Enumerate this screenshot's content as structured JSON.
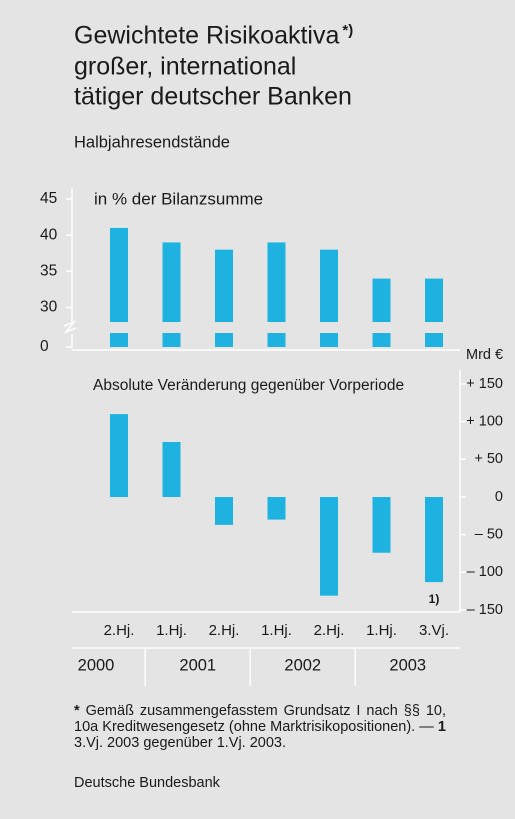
{
  "chart_data": {
    "type": "bar",
    "title": [
      "Gewichtete Risikoaktiva",
      "großer, international",
      "tätiger deutscher Banken"
    ],
    "title_mark": "*)",
    "subtitle": "Halbjahresendstände",
    "categories": [
      "2.Hj.",
      "1.Hj.",
      "2.Hj.",
      "1.Hj.",
      "2.Hj.",
      "1.Hj.",
      "3.Vj."
    ],
    "groups": [
      {
        "label": "2000",
        "span": 1
      },
      {
        "label": "2001",
        "span": 2
      },
      {
        "label": "2002",
        "span": 2
      },
      {
        "label": "2003",
        "span": 2
      }
    ],
    "series": [
      {
        "name": "in % der Bilanzsumme",
        "color": "#1eb2e0",
        "values": [
          41,
          39,
          38,
          39,
          38,
          34,
          34
        ]
      },
      {
        "name": "Absolute Veränderung gegenüber Vorperiode",
        "color": "#1eb2e0",
        "axis": "y2",
        "values": [
          110,
          73,
          -37,
          -30,
          -131,
          -74,
          -113
        ]
      }
    ],
    "ylim": [
      0,
      45
    ],
    "yticks": [
      0,
      30,
      35,
      40,
      45
    ],
    "axis_break": [
      2,
      28
    ],
    "y2label": "Mrd €",
    "y2lim": [
      -150,
      150
    ],
    "y2ticks": [
      {
        "value": 150,
        "label": "+ 150"
      },
      {
        "value": 100,
        "label": "+ 100"
      },
      {
        "value": 50,
        "label": "+ 50"
      },
      0,
      {
        "value": -50,
        "label": "– 50"
      },
      {
        "value": -100,
        "label": "– 100"
      },
      {
        "value": -150,
        "label": "– 150"
      }
    ],
    "annotation": {
      "text": "1)",
      "category": 6
    },
    "footnotes": [
      {
        "mark": "*",
        "text": "Gemäß zusammengefasstem Grundsatz I nach §§ 10, 10a Kreditwesengesetz (ohne Marktrisikopositionen). —"
      },
      {
        "mark": "1",
        "text": "3.Vj. 2003 gegenüber 1.Vj. 2003."
      }
    ],
    "source": "Deutsche Bundesbank"
  }
}
